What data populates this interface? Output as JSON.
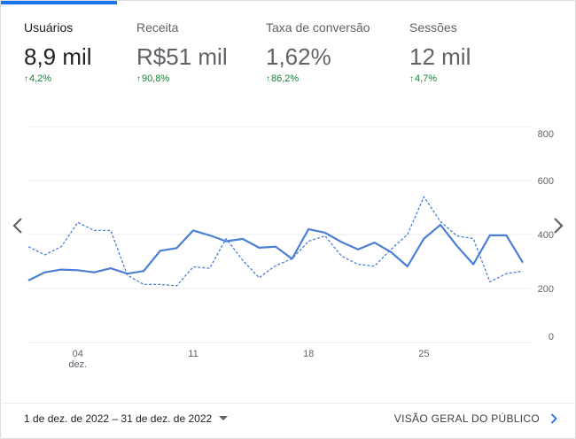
{
  "metrics": [
    {
      "title": "Usuários",
      "value": "8,9 mil",
      "change": "4,2%",
      "active": true
    },
    {
      "title": "Receita",
      "value": "R$51 mil",
      "change": "90,8%",
      "active": false
    },
    {
      "title": "Taxa de conversão",
      "value": "1,62%",
      "change": "86,2%",
      "active": false
    },
    {
      "title": "Sessões",
      "value": "12 mil",
      "change": "4,7%",
      "active": false
    }
  ],
  "colors": {
    "accent": "#1a73e8",
    "series": "#4a7fd4",
    "positive": "#188038"
  },
  "footer": {
    "date_range": "1 de dez. de 2022 – 31 de dez. de 2022",
    "overview_link": "VISÃO GERAL DO PÚBLICO"
  },
  "chart_data": {
    "type": "line",
    "x_days": [
      1,
      2,
      3,
      4,
      5,
      6,
      7,
      8,
      9,
      10,
      11,
      12,
      13,
      14,
      15,
      16,
      17,
      18,
      19,
      20,
      21,
      22,
      23,
      24,
      25,
      26,
      27,
      28,
      29,
      30,
      31
    ],
    "xticks": [
      {
        "day": 4,
        "label": "04",
        "sublabel": "dez."
      },
      {
        "day": 11,
        "label": "11",
        "sublabel": ""
      },
      {
        "day": 18,
        "label": "18",
        "sublabel": ""
      },
      {
        "day": 25,
        "label": "25",
        "sublabel": ""
      }
    ],
    "y_ticks": [
      "800",
      "600",
      "400",
      "200",
      "0"
    ],
    "ylim": [
      0,
      800
    ],
    "grid": true,
    "series": [
      {
        "style": "solid",
        "values": [
          230,
          260,
          270,
          268,
          260,
          275,
          255,
          265,
          340,
          350,
          415,
          397,
          375,
          384,
          351,
          355,
          310,
          420,
          407,
          372,
          345,
          370,
          335,
          282,
          385,
          436,
          358,
          290,
          397,
          397,
          296
        ]
      },
      {
        "style": "dashed",
        "values": [
          355,
          325,
          355,
          445,
          415,
          415,
          250,
          215,
          215,
          210,
          280,
          275,
          385,
          305,
          240,
          285,
          310,
          375,
          395,
          320,
          290,
          283,
          345,
          400,
          540,
          448,
          395,
          385,
          225,
          255,
          265
        ]
      }
    ]
  }
}
